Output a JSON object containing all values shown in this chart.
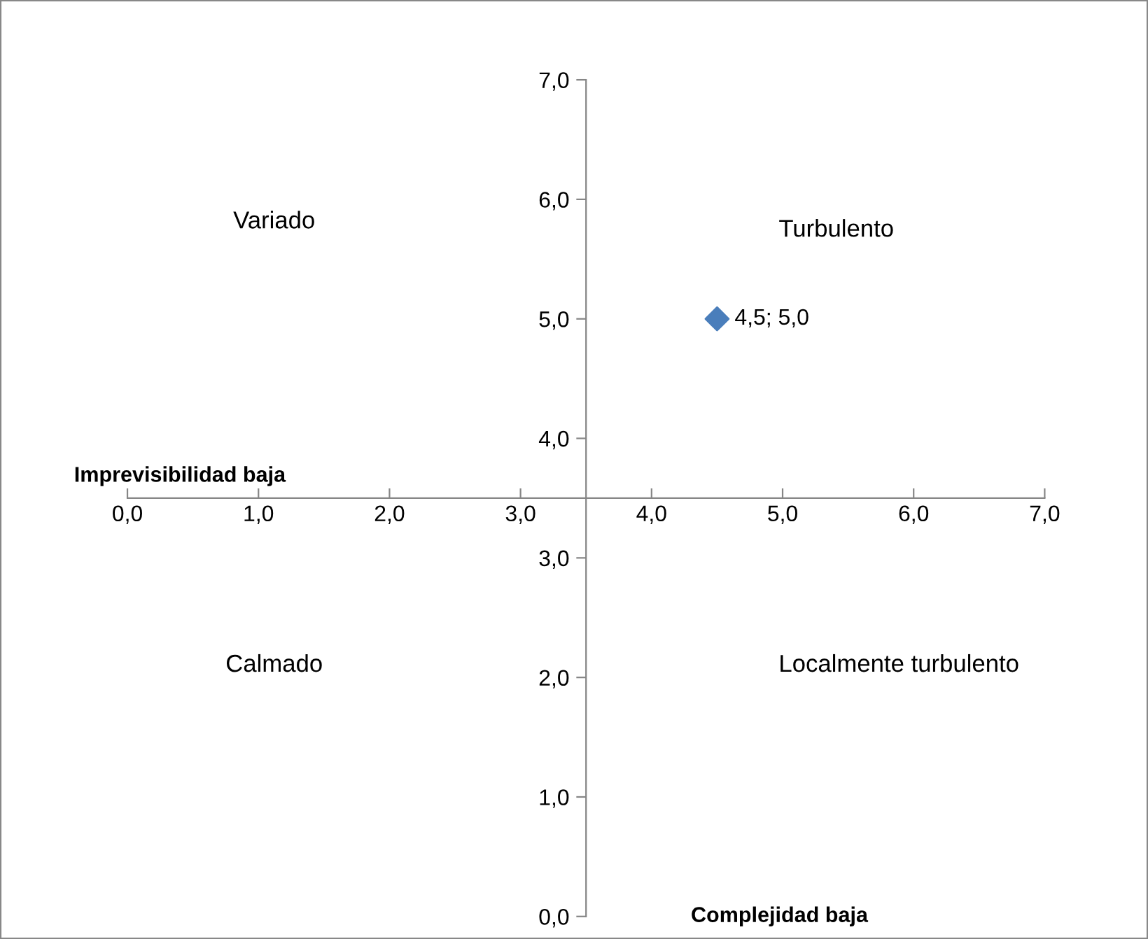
{
  "chart_data": {
    "type": "scatter",
    "xlabel": "Imprevisibilidad baja",
    "ylabel": "Complejidad baja",
    "annotations": [
      "Variado",
      "Turbulento",
      "Calmado",
      "Localmente turbulento"
    ],
    "series": [
      {
        "color": "#4a7ebb",
        "x": [
          4.5
        ],
        "values": [
          5.0
        ],
        "value_labels": [
          "4,5; 5,0"
        ]
      }
    ],
    "xlim": [
      0,
      7
    ],
    "ylim": [
      0,
      7
    ],
    "xticks": [
      {
        "value": 0,
        "label": "0,0"
      },
      {
        "value": 1,
        "label": "1,0"
      },
      {
        "value": 2,
        "label": "2,0"
      },
      {
        "value": 3,
        "label": "3,0"
      },
      {
        "value": 4,
        "label": "4,0"
      },
      {
        "value": 5,
        "label": "5,0"
      },
      {
        "value": 6,
        "label": "6,0"
      },
      {
        "value": 7,
        "label": "7,0"
      }
    ],
    "yticks": [
      {
        "value": 0,
        "label": "0,0"
      },
      {
        "value": 1,
        "label": "1,0"
      },
      {
        "value": 2,
        "label": "2,0"
      },
      {
        "value": 3,
        "label": "3,0"
      },
      {
        "value": 4,
        "label": "4,0"
      },
      {
        "value": 5,
        "label": "5,0"
      },
      {
        "value": 6,
        "label": "6,0"
      },
      {
        "value": 7,
        "label": "7,0"
      }
    ],
    "marker": "diamond",
    "grid": false,
    "legend": false
  }
}
